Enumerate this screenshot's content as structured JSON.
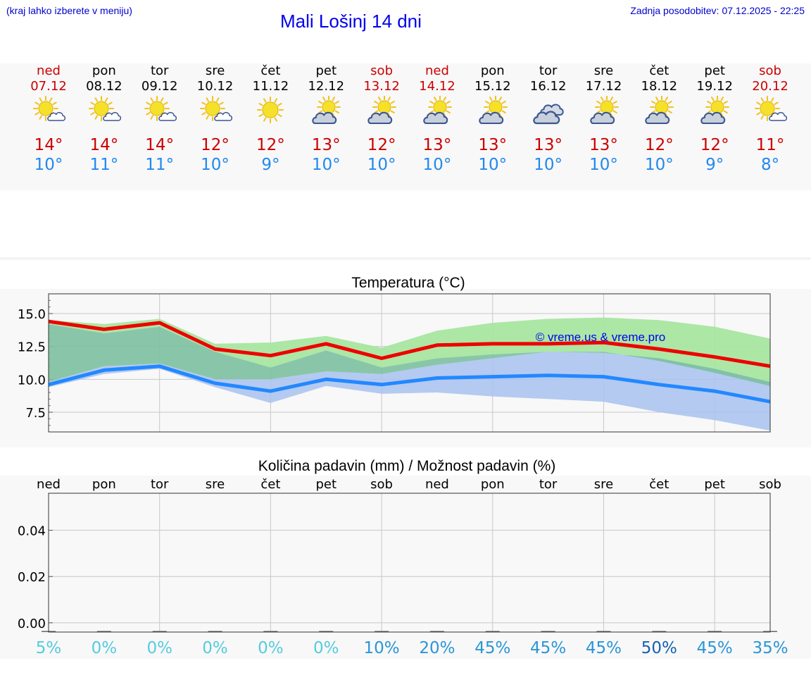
{
  "header": {
    "hint": "(kraj lahko izberete v meniju)",
    "title": "Mali Lošinj 14 dni",
    "updated_label": "Zadnja posodobitev:",
    "updated_value": "07.12.2025 - 22:25"
  },
  "days": [
    {
      "name": "ned",
      "date": "07.12",
      "weekend": true,
      "icon": "sun-cloud-icon",
      "max": "14°",
      "min": "10°"
    },
    {
      "name": "pon",
      "date": "08.12",
      "weekend": false,
      "icon": "sun-cloud-icon",
      "max": "14°",
      "min": "11°"
    },
    {
      "name": "tor",
      "date": "09.12",
      "weekend": false,
      "icon": "sun-cloud-icon",
      "max": "14°",
      "min": "11°"
    },
    {
      "name": "sre",
      "date": "10.12",
      "weekend": false,
      "icon": "sun-cloud-icon",
      "max": "12°",
      "min": "10°"
    },
    {
      "name": "čet",
      "date": "11.12",
      "weekend": false,
      "icon": "sun-icon",
      "max": "12°",
      "min": "9°"
    },
    {
      "name": "pet",
      "date": "12.12",
      "weekend": false,
      "icon": "partly-cloudy-icon",
      "max": "13°",
      "min": "10°"
    },
    {
      "name": "sob",
      "date": "13.12",
      "weekend": true,
      "icon": "partly-cloudy-icon",
      "max": "12°",
      "min": "10°"
    },
    {
      "name": "ned",
      "date": "14.12",
      "weekend": true,
      "icon": "partly-cloudy-icon",
      "max": "13°",
      "min": "10°"
    },
    {
      "name": "pon",
      "date": "15.12",
      "weekend": false,
      "icon": "partly-cloudy-icon",
      "max": "13°",
      "min": "10°"
    },
    {
      "name": "tor",
      "date": "16.12",
      "weekend": false,
      "icon": "cloudy-icon",
      "max": "13°",
      "min": "10°"
    },
    {
      "name": "sre",
      "date": "17.12",
      "weekend": false,
      "icon": "partly-cloudy-icon",
      "max": "13°",
      "min": "10°"
    },
    {
      "name": "čet",
      "date": "18.12",
      "weekend": false,
      "icon": "partly-cloudy-icon",
      "max": "12°",
      "min": "10°"
    },
    {
      "name": "pet",
      "date": "19.12",
      "weekend": false,
      "icon": "partly-cloudy-icon",
      "max": "12°",
      "min": "9°"
    },
    {
      "name": "sob",
      "date": "20.12",
      "weekend": true,
      "icon": "sun-cloud-icon",
      "max": "11°",
      "min": "8°"
    }
  ],
  "colors": {
    "max": "#ee0000",
    "min": "#2288ff",
    "max_band": "#a8e6a0",
    "min_band": "#a8c2f0",
    "overlap": "#7cc0a0",
    "weekend": "#cc0000"
  },
  "chart_data": [
    {
      "type": "line",
      "title": "Temperatura (°C)",
      "watermark": "© vreme.us & vreme.pro",
      "x": [
        0,
        1,
        2,
        3,
        4,
        5,
        6,
        7,
        8,
        9,
        10,
        11,
        12,
        13
      ],
      "ylim": [
        6.0,
        16.5
      ],
      "yticks": [
        7.5,
        10.0,
        12.5,
        15.0
      ],
      "ytick_labels": [
        "7.5",
        "10.0",
        "12.5",
        "15.0"
      ],
      "series": [
        {
          "name": "max",
          "values": [
            14.4,
            13.8,
            14.3,
            12.3,
            11.8,
            12.7,
            11.6,
            12.6,
            12.7,
            12.7,
            12.8,
            12.3,
            11.7,
            11.0
          ],
          "band_low": [
            14.2,
            13.5,
            14.0,
            12.1,
            10.9,
            12.2,
            10.9,
            11.6,
            11.9,
            12.1,
            12.1,
            11.4,
            10.5,
            9.5
          ],
          "band_high": [
            14.5,
            14.2,
            14.6,
            12.7,
            12.8,
            13.3,
            12.4,
            13.7,
            14.3,
            14.6,
            14.7,
            14.5,
            14.0,
            13.1
          ]
        },
        {
          "name": "min",
          "values": [
            9.6,
            10.7,
            11.0,
            9.7,
            9.1,
            10.0,
            9.6,
            10.1,
            10.2,
            10.3,
            10.2,
            9.6,
            9.1,
            8.3
          ],
          "band_low": [
            9.4,
            10.4,
            10.8,
            9.4,
            8.2,
            9.5,
            8.9,
            9.0,
            8.7,
            8.5,
            8.3,
            7.5,
            6.9,
            6.1
          ],
          "band_high": [
            9.8,
            11.0,
            11.2,
            10.0,
            10.0,
            10.6,
            10.4,
            11.1,
            11.6,
            12.1,
            12.0,
            11.6,
            10.8,
            9.8
          ]
        }
      ]
    },
    {
      "type": "bar",
      "title": "Količina padavin (mm) / Možnost padavin (%)",
      "categories": [
        "ned",
        "pon",
        "tor",
        "sre",
        "čet",
        "pet",
        "sob",
        "ned",
        "pon",
        "tor",
        "sre",
        "čet",
        "pet",
        "sob"
      ],
      "values": [
        0,
        0,
        0,
        0,
        0,
        0,
        0,
        0,
        0,
        0,
        0,
        0,
        0,
        0
      ],
      "ylim": [
        -0.004,
        0.056
      ],
      "yticks": [
        0.0,
        0.02,
        0.04
      ],
      "ytick_labels": [
        "0.00",
        "0.02",
        "0.04"
      ],
      "probability_pct": [
        5,
        0,
        0,
        0,
        0,
        0,
        10,
        20,
        45,
        45,
        45,
        50,
        45,
        35
      ],
      "probability_labels": [
        "5%",
        "0%",
        "0%",
        "0%",
        "0%",
        "0%",
        "10%",
        "20%",
        "45%",
        "45%",
        "45%",
        "50%",
        "45%",
        "35%"
      ]
    }
  ]
}
